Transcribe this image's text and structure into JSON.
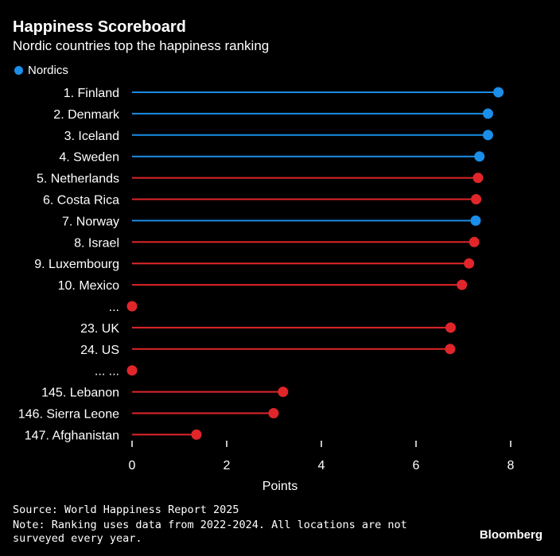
{
  "header": {
    "title": "Happiness Scoreboard",
    "subtitle": "Nordic countries top the happiness ranking"
  },
  "legend": {
    "label": "Nordics",
    "color": "#1a8ee8"
  },
  "colors": {
    "nordic": "#1a8ee8",
    "other": "#e0262a",
    "background": "#000000",
    "text": "#ffffff",
    "axis": "#ffffff"
  },
  "chart_data": {
    "type": "lollipop",
    "title": "Happiness Scoreboard",
    "subtitle": "Nordic countries top the happiness ranking",
    "xlabel": "Points",
    "ylabel": "",
    "xlim": [
      0,
      8
    ],
    "xticks": [
      0,
      2,
      4,
      6,
      8
    ],
    "legend": {
      "entries": [
        "Nordics"
      ],
      "placement": "top-left"
    },
    "grid": false,
    "categories": [
      "1. Finland",
      "2. Denmark",
      "3. Iceland",
      "4. Sweden",
      "5. Netherlands",
      "6. Costa Rica",
      "7. Norway",
      "8. Israel",
      "9. Luxembourg",
      "10. Mexico",
      "...",
      "23. UK",
      "24. US",
      "... ...",
      "145. Lebanon",
      "146. Sierra Leone",
      "147. Afghanistan"
    ],
    "values": [
      7.74,
      7.52,
      7.52,
      7.34,
      7.31,
      7.27,
      7.26,
      7.23,
      7.12,
      6.97,
      0,
      6.73,
      6.72,
      0,
      3.19,
      2.99,
      1.36
    ],
    "nordic": [
      true,
      true,
      true,
      true,
      false,
      false,
      true,
      false,
      false,
      false,
      false,
      false,
      false,
      false,
      false,
      false,
      false
    ]
  },
  "footer": {
    "source": "Source: World Happiness Report 2025",
    "note": "Note: Ranking uses data from 2022-2024. All locations are not surveyed every year.",
    "brand": "Bloomberg"
  }
}
